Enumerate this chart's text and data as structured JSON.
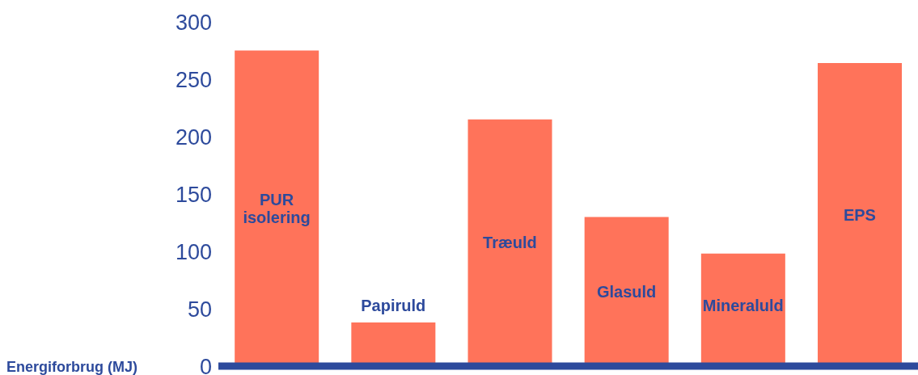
{
  "chart_data": {
    "type": "bar",
    "ylabel": "Energiforbrug (MJ)",
    "categories": [
      "PUR isolering",
      "Papiruld",
      "Træuld",
      "Glasuld",
      "Mineraluld",
      "EPS"
    ],
    "values": [
      275,
      38,
      215,
      130,
      98,
      264
    ],
    "color": "#ff735a",
    "ylim": [
      0,
      300
    ],
    "yticks": [
      0,
      50,
      100,
      150,
      200,
      250,
      300
    ]
  }
}
